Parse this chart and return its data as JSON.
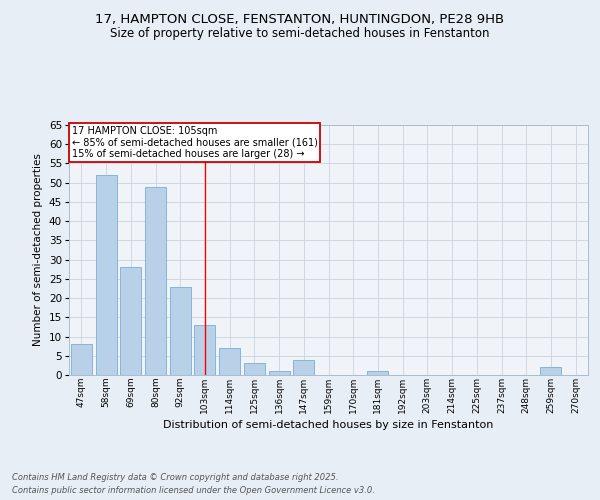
{
  "title_line1": "17, HAMPTON CLOSE, FENSTANTON, HUNTINGDON, PE28 9HB",
  "title_line2": "Size of property relative to semi-detached houses in Fenstanton",
  "categories": [
    "47sqm",
    "58sqm",
    "69sqm",
    "80sqm",
    "92sqm",
    "103sqm",
    "114sqm",
    "125sqm",
    "136sqm",
    "147sqm",
    "159sqm",
    "170sqm",
    "181sqm",
    "192sqm",
    "203sqm",
    "214sqm",
    "225sqm",
    "237sqm",
    "248sqm",
    "259sqm",
    "270sqm"
  ],
  "values": [
    8,
    52,
    28,
    49,
    23,
    13,
    7,
    3,
    1,
    4,
    0,
    0,
    1,
    0,
    0,
    0,
    0,
    0,
    0,
    2,
    0
  ],
  "bar_color": "#b8d0e8",
  "bar_edge_color": "#7aaed4",
  "xlabel": "Distribution of semi-detached houses by size in Fenstanton",
  "ylabel": "Number of semi-detached properties",
  "ylim": [
    0,
    65
  ],
  "yticks": [
    0,
    5,
    10,
    15,
    20,
    25,
    30,
    35,
    40,
    45,
    50,
    55,
    60,
    65
  ],
  "property_line_x": 5,
  "property_label": "17 HAMPTON CLOSE: 105sqm",
  "annotation_line1": "← 85% of semi-detached houses are smaller (161)",
  "annotation_line2": "15% of semi-detached houses are larger (28) →",
  "annotation_box_color": "#ffffff",
  "annotation_box_edge": "#cc0000",
  "footer_line1": "Contains HM Land Registry data © Crown copyright and database right 2025.",
  "footer_line2": "Contains public sector information licensed under the Open Government Licence v3.0.",
  "bg_color": "#e8eef5",
  "plot_bg_color": "#f0f4f8",
  "grid_color": "#c8d4e0"
}
